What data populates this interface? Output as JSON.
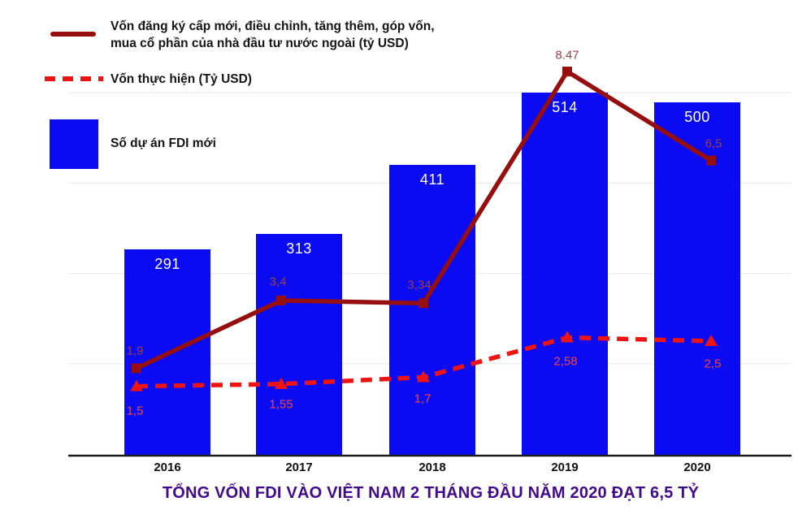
{
  "title": "TỔNG VỐN FDI VÀO VIỆT NAM 2 THÁNG ĐẦU NĂM 2020 ĐẠT 6,5 TỶ",
  "legend": {
    "items": [
      {
        "label_lines": [
          "Vốn đăng ký cấp mới, điều chỉnh, tăng thêm, góp vốn,",
          "mua cổ phần của nhà đầu tư nước ngoài (tỷ USD)"
        ],
        "swatch": "solid-line",
        "color": "#970e0e"
      },
      {
        "label": "Vốn thực hiện (Tỷ USD)",
        "swatch": "dashed-line",
        "color": "#ee1414"
      },
      {
        "label": "Số dự án FDI mới",
        "swatch": "square",
        "color": "#0a0af3"
      }
    ]
  },
  "colors": {
    "bar": "#0a0af3",
    "solid_line": "#970e0e",
    "dashed_line": "#ee1414",
    "solid_label": "#9c4040",
    "dashed_label": "#f04848",
    "bar_label": "#ffffff",
    "axis": "#1a1a1a",
    "grid": "#efefef",
    "title": "#41098c",
    "tick_label": "#111111"
  },
  "chart_data": {
    "type": "combo",
    "categories": [
      "2016",
      "2017",
      "2018",
      "2019",
      "2020"
    ],
    "series": [
      {
        "name": "Số dự án FDI mới",
        "type": "bar",
        "values": [
          291,
          313,
          411,
          514,
          500
        ],
        "labels": [
          "291",
          "313",
          "411",
          "514",
          "500"
        ]
      },
      {
        "name": "Vốn đăng ký cấp mới, điều chỉnh, tăng thêm, góp vốn, mua cổ phần của nhà đầu tư nước ngoài (tỷ USD)",
        "type": "line",
        "style": "solid",
        "marker": "square",
        "values": [
          1.9,
          3.4,
          3.34,
          8.47,
          6.5
        ],
        "labels": [
          "1,9",
          "3,4",
          "3,34",
          "8.47",
          "6,5"
        ]
      },
      {
        "name": "Vốn thực hiện (Tỷ USD)",
        "type": "line",
        "style": "dashed",
        "marker": "triangle",
        "values": [
          1.5,
          1.55,
          1.7,
          2.58,
          2.5
        ],
        "labels": [
          "1,5",
          "1,55",
          "1,7",
          "2,58",
          "2,5"
        ]
      }
    ],
    "bar_axis_range": [
      0,
      645
    ],
    "line_axis_range": [
      0,
      10
    ],
    "gridlines_line_axis_values": [
      2,
      4,
      6,
      8
    ],
    "grid": "faint-horizontal",
    "legend_position": "top-left",
    "x_axis_visible": true,
    "y_axis_visible": false
  }
}
